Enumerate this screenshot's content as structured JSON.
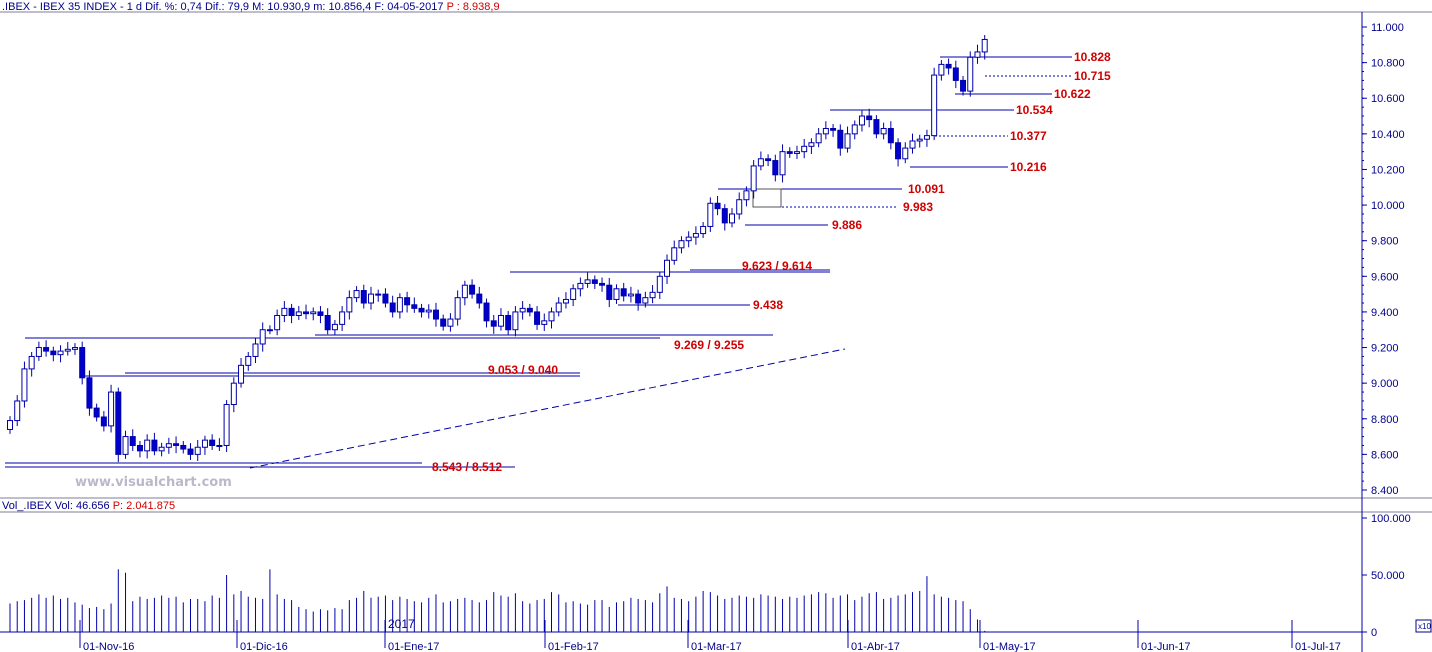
{
  "header": {
    "symbol": ".IBEX - IBEX 35 INDEX - 1 d",
    "dif_pct": "Dif. %: 0,74",
    "dif": "Dif.: 79,9",
    "max": "M: 10.930,9",
    "min": "m: 10.856,4",
    "date": "F: 04-05-2017",
    "price": "P : 8.938,9"
  },
  "volume_header": {
    "label": "Vol_.IBEX Vol: 46.656",
    "p": "P: 2.041.875"
  },
  "watermark": "www.visualchart.com",
  "year_label": "2017",
  "colors": {
    "line": "#0000aa",
    "label_red": "#d00000",
    "bull_fill": "#ffffff",
    "bear_fill": "#0000cc"
  },
  "chart_data": {
    "type": "candlestick",
    "y_axis": {
      "min": 8400,
      "max": 11050,
      "ticks": [
        "11.000",
        "10.800",
        "10.600",
        "10.400",
        "10.200",
        "10.000",
        "9.800",
        "9.600",
        "9.400",
        "9.200",
        "9.000",
        "8.800",
        "8.600",
        "8.400"
      ]
    },
    "volume_axis": {
      "ticks": [
        "100.000",
        "50.000",
        "0"
      ],
      "unit": "x10"
    },
    "x_labels": [
      "01-Nov-16",
      "01-Dic-16",
      "01-Ene-17",
      "01-Feb-17",
      "01-Mar-17",
      "01-Abr-17",
      "01-May-17",
      "01-Jun-17",
      "01-Jul-17"
    ],
    "levels": [
      {
        "label": "10.828"
      },
      {
        "label": "10.715"
      },
      {
        "label": "10.622"
      },
      {
        "label": "10.534"
      },
      {
        "label": "10.377"
      },
      {
        "label": "10.216"
      },
      {
        "label": "10.091"
      },
      {
        "label": "9.983"
      },
      {
        "label": "9.886"
      },
      {
        "label": "9.623 / 9.614"
      },
      {
        "label": "9.438"
      },
      {
        "label": "9.269 / 9.255"
      },
      {
        "label": "9.053 / 9.040"
      },
      {
        "label": "8.543 / 8.512"
      }
    ],
    "closes": [
      8790,
      8900,
      9080,
      9150,
      9200,
      9180,
      9160,
      9180,
      9190,
      9200,
      9030,
      8860,
      8810,
      8760,
      8950,
      8600,
      8700,
      8650,
      8620,
      8680,
      8620,
      8640,
      8660,
      8650,
      8630,
      8600,
      8640,
      8680,
      8650,
      8650,
      8880,
      9000,
      9100,
      9150,
      9220,
      9300,
      9300,
      9380,
      9420,
      9380,
      9400,
      9390,
      9400,
      9380,
      9300,
      9330,
      9400,
      9480,
      9520,
      9450,
      9500,
      9500,
      9450,
      9400,
      9480,
      9440,
      9420,
      9400,
      9410,
      9360,
      9320,
      9360,
      9480,
      9550,
      9500,
      9450,
      9350,
      9320,
      9380,
      9300,
      9400,
      9420,
      9400,
      9330,
      9350,
      9400,
      9450,
      9470,
      9530,
      9560,
      9580,
      9560,
      9550,
      9470,
      9530,
      9490,
      9500,
      9450,
      9480,
      9510,
      9600,
      9690,
      9760,
      9800,
      9820,
      9840,
      9880,
      10010,
      9980,
      9900,
      9950,
      10030,
      10080,
      10220,
      10260,
      10250,
      10170,
      10300,
      10290,
      10300,
      10330,
      10350,
      10400,
      10430,
      10420,
      10320,
      10400,
      10450,
      10500,
      10480,
      10400,
      10430,
      10350,
      10260,
      10320,
      10360,
      10370,
      10390,
      10730,
      10790,
      10770,
      10700,
      10640,
      10830,
      10860,
      10930
    ],
    "volumes": [
      25,
      27,
      28,
      30,
      33,
      30,
      32,
      29,
      30,
      26,
      24,
      21,
      22,
      20,
      25,
      55,
      52,
      27,
      31,
      29,
      30,
      32,
      30,
      31,
      26,
      29,
      29,
      27,
      32,
      30,
      50,
      33,
      36,
      31,
      30,
      29,
      55,
      33,
      29,
      28,
      22,
      20,
      18,
      20,
      19,
      21,
      20,
      28,
      30,
      36,
      30,
      31,
      32,
      28,
      31,
      29,
      27,
      26,
      30,
      33,
      26,
      27,
      29,
      30,
      28,
      26,
      28,
      35,
      32,
      31,
      34,
      27,
      25,
      28,
      29,
      35,
      33,
      26,
      27,
      25,
      24,
      28,
      28,
      22,
      26,
      27,
      30,
      29,
      28,
      26,
      34,
      40,
      30,
      29,
      27,
      31,
      36,
      35,
      32,
      29,
      30,
      32,
      31,
      30,
      33,
      32,
      31,
      29,
      31,
      30,
      32,
      33,
      35,
      34,
      30,
      32,
      33,
      28,
      31,
      34,
      35,
      29,
      30,
      32,
      33,
      35,
      36,
      49,
      33,
      31,
      30,
      28,
      27,
      20,
      11,
      1
    ]
  }
}
